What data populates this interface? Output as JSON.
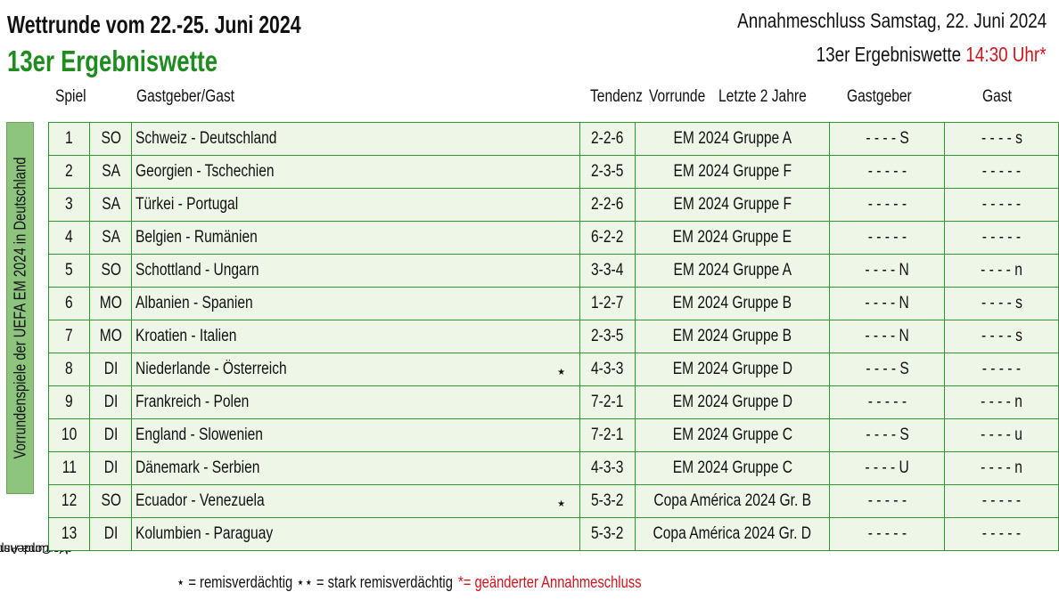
{
  "header": {
    "title": "Wettrunde vom 22.-25. Juni 2024",
    "subtitle": "13er Ergebniswette",
    "deadline": "Annahmeschluss Samstag, 22. Juni 2024",
    "deadline_bet_label": "13er Ergebniswette",
    "deadline_time": "14:30 Uhr*"
  },
  "columns": {
    "spiel": "Spiel",
    "teams": "Gastgeber/Gast",
    "tendenz": "Tendenz",
    "vorrunde": "Vorrunde",
    "letzte": "Letzte 2 Jahre",
    "gastgeber": "Gastgeber",
    "gast": "Gast"
  },
  "side_labels": {
    "em": "Vorrundenspiele der UEFA EM 2024 in Deutschland",
    "copa_line1": "Vorrundenspiele",
    "copa_line2": "der Copa América"
  },
  "colors": {
    "accent_green": "#1f8c1f",
    "cell_bg": "#eef6e7",
    "border": "#2e9a2e",
    "side_bg": "#8dc47e",
    "red": "#d0141c"
  },
  "games": [
    {
      "nr": "1",
      "day": "SO",
      "match": "Schweiz - Deutschland",
      "star": "",
      "tendenz": "2-2-6",
      "vorrunde": "EM 2024 Gruppe A",
      "gastgeber": "- - - - S",
      "gast": "- - - - s"
    },
    {
      "nr": "2",
      "day": "SA",
      "match": "Georgien - Tschechien",
      "star": "",
      "tendenz": "2-3-5",
      "vorrunde": "EM 2024 Gruppe F",
      "gastgeber": "- - - - -",
      "gast": "- - - - -"
    },
    {
      "nr": "3",
      "day": "SA",
      "match": "Türkei - Portugal",
      "star": "",
      "tendenz": "2-2-6",
      "vorrunde": "EM 2024 Gruppe F",
      "gastgeber": "- - - - -",
      "gast": "- - - - -"
    },
    {
      "nr": "4",
      "day": "SA",
      "match": "Belgien - Rumänien",
      "star": "",
      "tendenz": "6-2-2",
      "vorrunde": "EM 2024 Gruppe E",
      "gastgeber": "- - - - -",
      "gast": "- - - - -"
    },
    {
      "nr": "5",
      "day": "SO",
      "match": "Schottland - Ungarn",
      "star": "",
      "tendenz": "3-3-4",
      "vorrunde": "EM 2024 Gruppe A",
      "gastgeber": "- - - - N",
      "gast": "- - - - n"
    },
    {
      "nr": "6",
      "day": "MO",
      "match": "Albanien - Spanien",
      "star": "",
      "tendenz": "1-2-7",
      "vorrunde": "EM 2024 Gruppe B",
      "gastgeber": "- - - - N",
      "gast": "- - - - s"
    },
    {
      "nr": "7",
      "day": "MO",
      "match": "Kroatien - Italien",
      "star": "",
      "tendenz": "2-3-5",
      "vorrunde": "EM 2024 Gruppe B",
      "gastgeber": "- - - - N",
      "gast": "- - - - s"
    },
    {
      "nr": "8",
      "day": "DI",
      "match": "Niederlande - Österreich",
      "star": "⋆",
      "tendenz": "4-3-3",
      "vorrunde": "EM 2024 Gruppe D",
      "gastgeber": "- - - - S",
      "gast": "- - - - -"
    },
    {
      "nr": "9",
      "day": "DI",
      "match": "Frankreich - Polen",
      "star": "",
      "tendenz": "7-2-1",
      "vorrunde": "EM 2024 Gruppe D",
      "gastgeber": "- - - - -",
      "gast": "- - - - n"
    },
    {
      "nr": "10",
      "day": "DI",
      "match": "England - Slowenien",
      "star": "",
      "tendenz": "7-2-1",
      "vorrunde": "EM 2024 Gruppe C",
      "gastgeber": "- - - - S",
      "gast": "- - - - u"
    },
    {
      "nr": "11",
      "day": "DI",
      "match": "Dänemark - Serbien",
      "star": "",
      "tendenz": "4-3-3",
      "vorrunde": "EM 2024 Gruppe C",
      "gastgeber": "- - - - U",
      "gast": "- - - - n"
    },
    {
      "nr": "12",
      "day": "SO",
      "match": "Ecuador - Venezuela",
      "star": "⋆",
      "tendenz": "5-3-2",
      "vorrunde": "Copa América 2024 Gr. B",
      "gastgeber": "- - - - -",
      "gast": "- - - - -"
    },
    {
      "nr": "13",
      "day": "DI",
      "match": "Kolumbien - Paraguay",
      "star": "",
      "tendenz": "5-3-2",
      "vorrunde": "Copa América 2024 Gr. D",
      "gastgeber": "- - - - -",
      "gast": "- - - - -"
    }
  ],
  "footer": {
    "legend": "⋆ = remisverdächtig ⋆⋆ = stark remisverdächtig",
    "changed": "*= geänderter Annahmeschluss"
  }
}
